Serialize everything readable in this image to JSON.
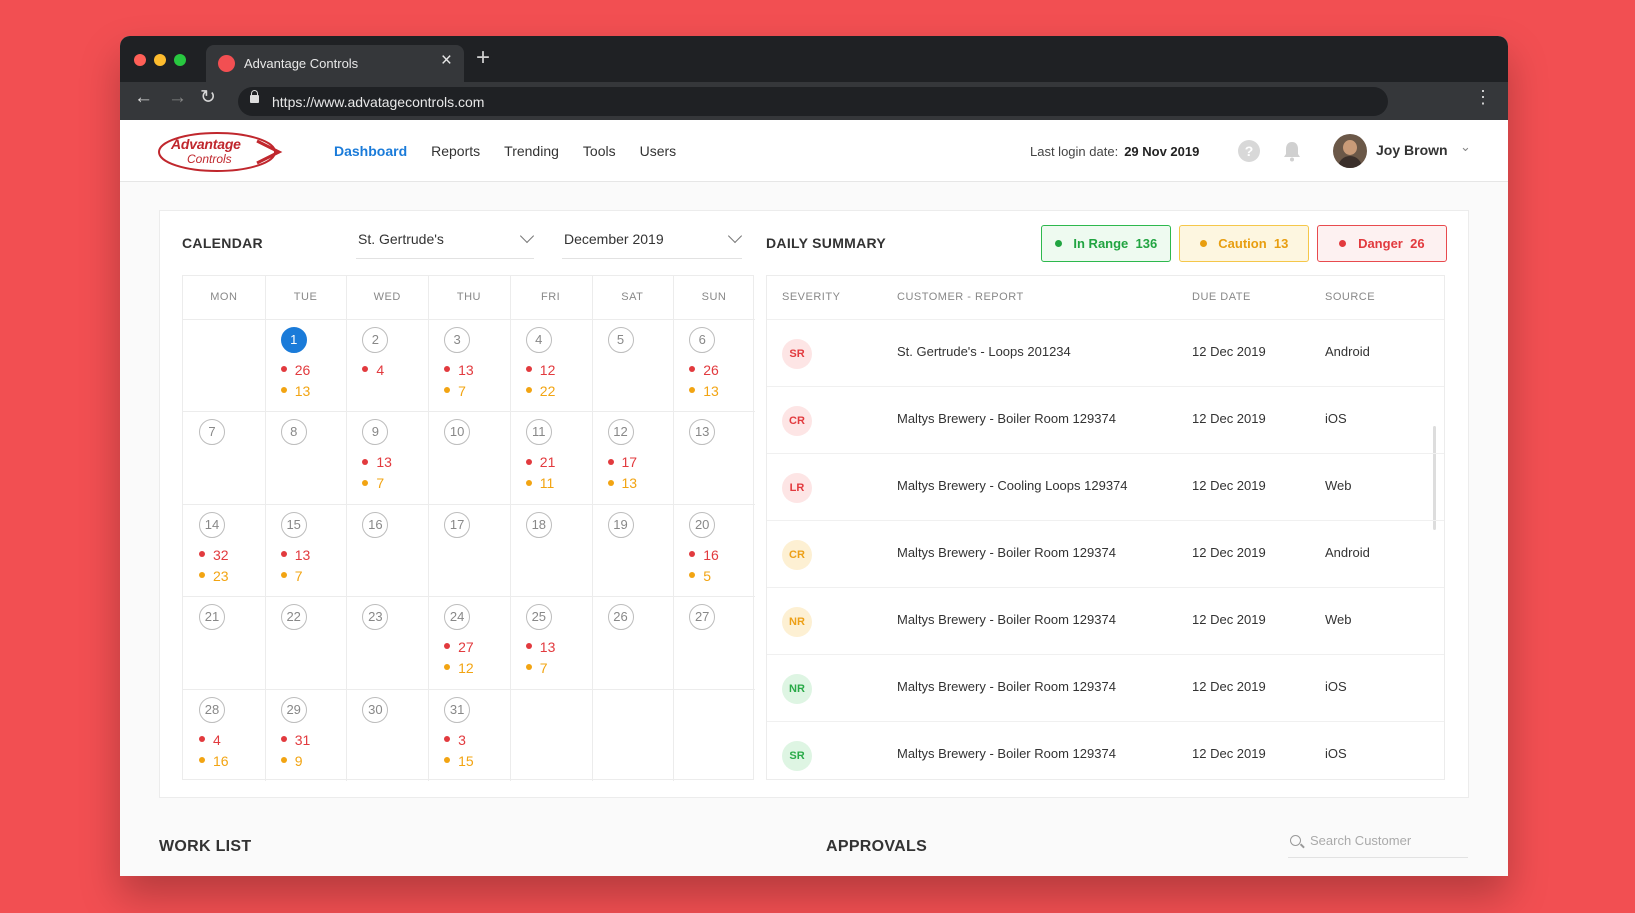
{
  "browser": {
    "tab_title": "Advantage Controls",
    "url": "https://www.advatagecontrols.com"
  },
  "logo": {
    "line1": "Advantage",
    "line2": "Controls"
  },
  "nav": {
    "items": [
      {
        "label": "Dashboard",
        "active": true
      },
      {
        "label": "Reports"
      },
      {
        "label": "Trending"
      },
      {
        "label": "Tools"
      },
      {
        "label": "Users"
      }
    ]
  },
  "header": {
    "last_login_label": "Last login date:",
    "last_login_value": "29 Nov 2019",
    "user_name": "Joy Brown"
  },
  "calendar": {
    "title": "CALENDAR",
    "site": "St. Gertrude's",
    "month": "December 2019",
    "weekdays": [
      "MON",
      "TUE",
      "WED",
      "THU",
      "FRI",
      "SAT",
      "SUN"
    ],
    "days": [
      {
        "day": "1",
        "today": true,
        "danger": "26",
        "caution": "13"
      },
      {
        "day": "2",
        "danger": "4"
      },
      {
        "day": "3",
        "danger": "13",
        "caution": "7"
      },
      {
        "day": "4",
        "danger": "12",
        "caution": "22"
      },
      {
        "day": "5"
      },
      {
        "day": "6",
        "danger": "26",
        "caution": "13"
      },
      {
        "day": "7"
      },
      {
        "day": "8"
      },
      {
        "day": "9",
        "danger": "13",
        "caution": "7"
      },
      {
        "day": "10"
      },
      {
        "day": "11",
        "danger": "21",
        "caution": "11"
      },
      {
        "day": "12",
        "danger": "17",
        "caution": "13"
      },
      {
        "day": "13"
      },
      {
        "day": "14",
        "danger": "32",
        "caution": "23"
      },
      {
        "day": "15",
        "danger": "13",
        "caution": "7"
      },
      {
        "day": "16"
      },
      {
        "day": "17"
      },
      {
        "day": "18"
      },
      {
        "day": "19"
      },
      {
        "day": "20",
        "danger": "16",
        "caution": "5"
      },
      {
        "day": "21"
      },
      {
        "day": "22"
      },
      {
        "day": "23"
      },
      {
        "day": "24",
        "danger": "27",
        "caution": "12"
      },
      {
        "day": "25",
        "danger": "13",
        "caution": "7"
      },
      {
        "day": "26"
      },
      {
        "day": "27"
      },
      {
        "day": "28",
        "danger": "4",
        "caution": "16"
      },
      {
        "day": "29",
        "danger": "31",
        "caution": "9"
      },
      {
        "day": "30"
      },
      {
        "day": "31",
        "danger": "3",
        "caution": "15"
      }
    ]
  },
  "summary": {
    "title": "DAILY SUMMARY",
    "badges": [
      {
        "label": "In Range",
        "count": "136",
        "color": "#21a441"
      },
      {
        "label": "Caution",
        "count": "13",
        "color": "#e89e10"
      },
      {
        "label": "Danger",
        "count": "26",
        "color": "#e23a3e"
      }
    ],
    "columns": [
      "SEVERITY",
      "CUSTOMER - REPORT",
      "DUE DATE",
      "SOURCE"
    ],
    "rows": [
      {
        "severity": "SR",
        "level": "red",
        "report": "St. Gertrude's - Loops 201234",
        "due": "12 Dec 2019",
        "source": "Android"
      },
      {
        "severity": "CR",
        "level": "red",
        "report": "Maltys Brewery - Boiler Room 129374",
        "due": "12 Dec 2019",
        "source": "iOS"
      },
      {
        "severity": "LR",
        "level": "red",
        "report": "Maltys Brewery - Cooling Loops 129374",
        "due": "12 Dec 2019",
        "source": "Web"
      },
      {
        "severity": "CR",
        "level": "yellow",
        "report": "Maltys Brewery - Boiler Room 129374",
        "due": "12 Dec 2019",
        "source": "Android"
      },
      {
        "severity": "NR",
        "level": "yellow",
        "report": "Maltys Brewery - Boiler Room 129374",
        "due": "12 Dec 2019",
        "source": "Web"
      },
      {
        "severity": "NR",
        "level": "green",
        "report": "Maltys Brewery - Boiler Room 129374",
        "due": "12 Dec 2019",
        "source": "iOS"
      },
      {
        "severity": "SR",
        "level": "green",
        "report": "Maltys Brewery - Boiler Room 129374",
        "due": "12 Dec 2019",
        "source": "iOS"
      }
    ]
  },
  "worklist": {
    "title": "WORK LIST"
  },
  "approvals": {
    "title": "APPROVALS",
    "search_placeholder": "Search Customer"
  }
}
